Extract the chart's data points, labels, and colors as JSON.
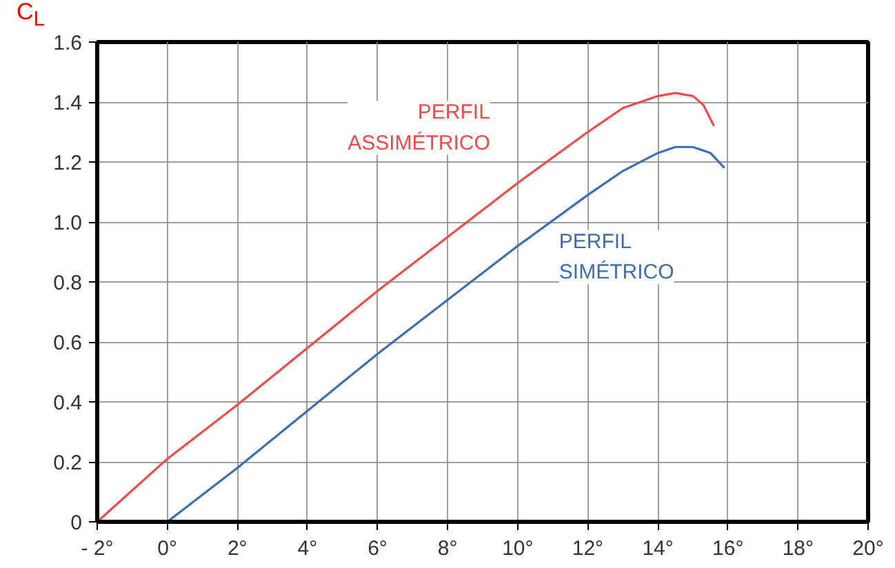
{
  "chart_data": {
    "type": "line",
    "ylabel": "C$_{L}$",
    "xlim": [
      -2,
      20
    ],
    "ylim": [
      0,
      1.6
    ],
    "xticks": [
      {
        "value": -2,
        "label": "- 2°"
      },
      {
        "value": 0,
        "label": "0°"
      },
      {
        "value": 2,
        "label": "2°"
      },
      {
        "value": 4,
        "label": "4°"
      },
      {
        "value": 6,
        "label": "6°"
      },
      {
        "value": 8,
        "label": "8°"
      },
      {
        "value": 10,
        "label": "10°"
      },
      {
        "value": 12,
        "label": "12°"
      },
      {
        "value": 14,
        "label": "14°"
      },
      {
        "value": 16,
        "label": "16°"
      },
      {
        "value": 18,
        "label": "18°"
      },
      {
        "value": 20,
        "label": "20°"
      }
    ],
    "yticks": [
      0,
      0.2,
      0.4,
      0.6,
      0.8,
      {
        "value": 1,
        "label": "1.0"
      },
      1.2,
      1.4,
      1.6
    ],
    "grid": true,
    "marker": "none",
    "line_style": "solid",
    "series": [
      {
        "name": "PERFIL ASSIMÉTRICO",
        "color": "#f04a4a",
        "x": [
          -2,
          0,
          2,
          4,
          6,
          8,
          10,
          12,
          13,
          14,
          14.5,
          15,
          15.3,
          15.6
        ],
        "values": [
          0,
          0.21,
          0.39,
          0.58,
          0.77,
          0.95,
          1.13,
          1.3,
          1.38,
          1.42,
          1.43,
          1.42,
          1.39,
          1.32
        ]
      },
      {
        "name": "PERFIL SIMÉTRICO",
        "color": "#3a6eb5",
        "x": [
          0,
          2,
          4,
          6,
          8,
          10,
          12,
          13,
          14,
          14.5,
          15,
          15.5,
          15.9
        ],
        "values": [
          0,
          0.18,
          0.37,
          0.56,
          0.74,
          0.92,
          1.09,
          1.17,
          1.23,
          1.25,
          1.25,
          1.23,
          1.18
        ]
      }
    ]
  }
}
